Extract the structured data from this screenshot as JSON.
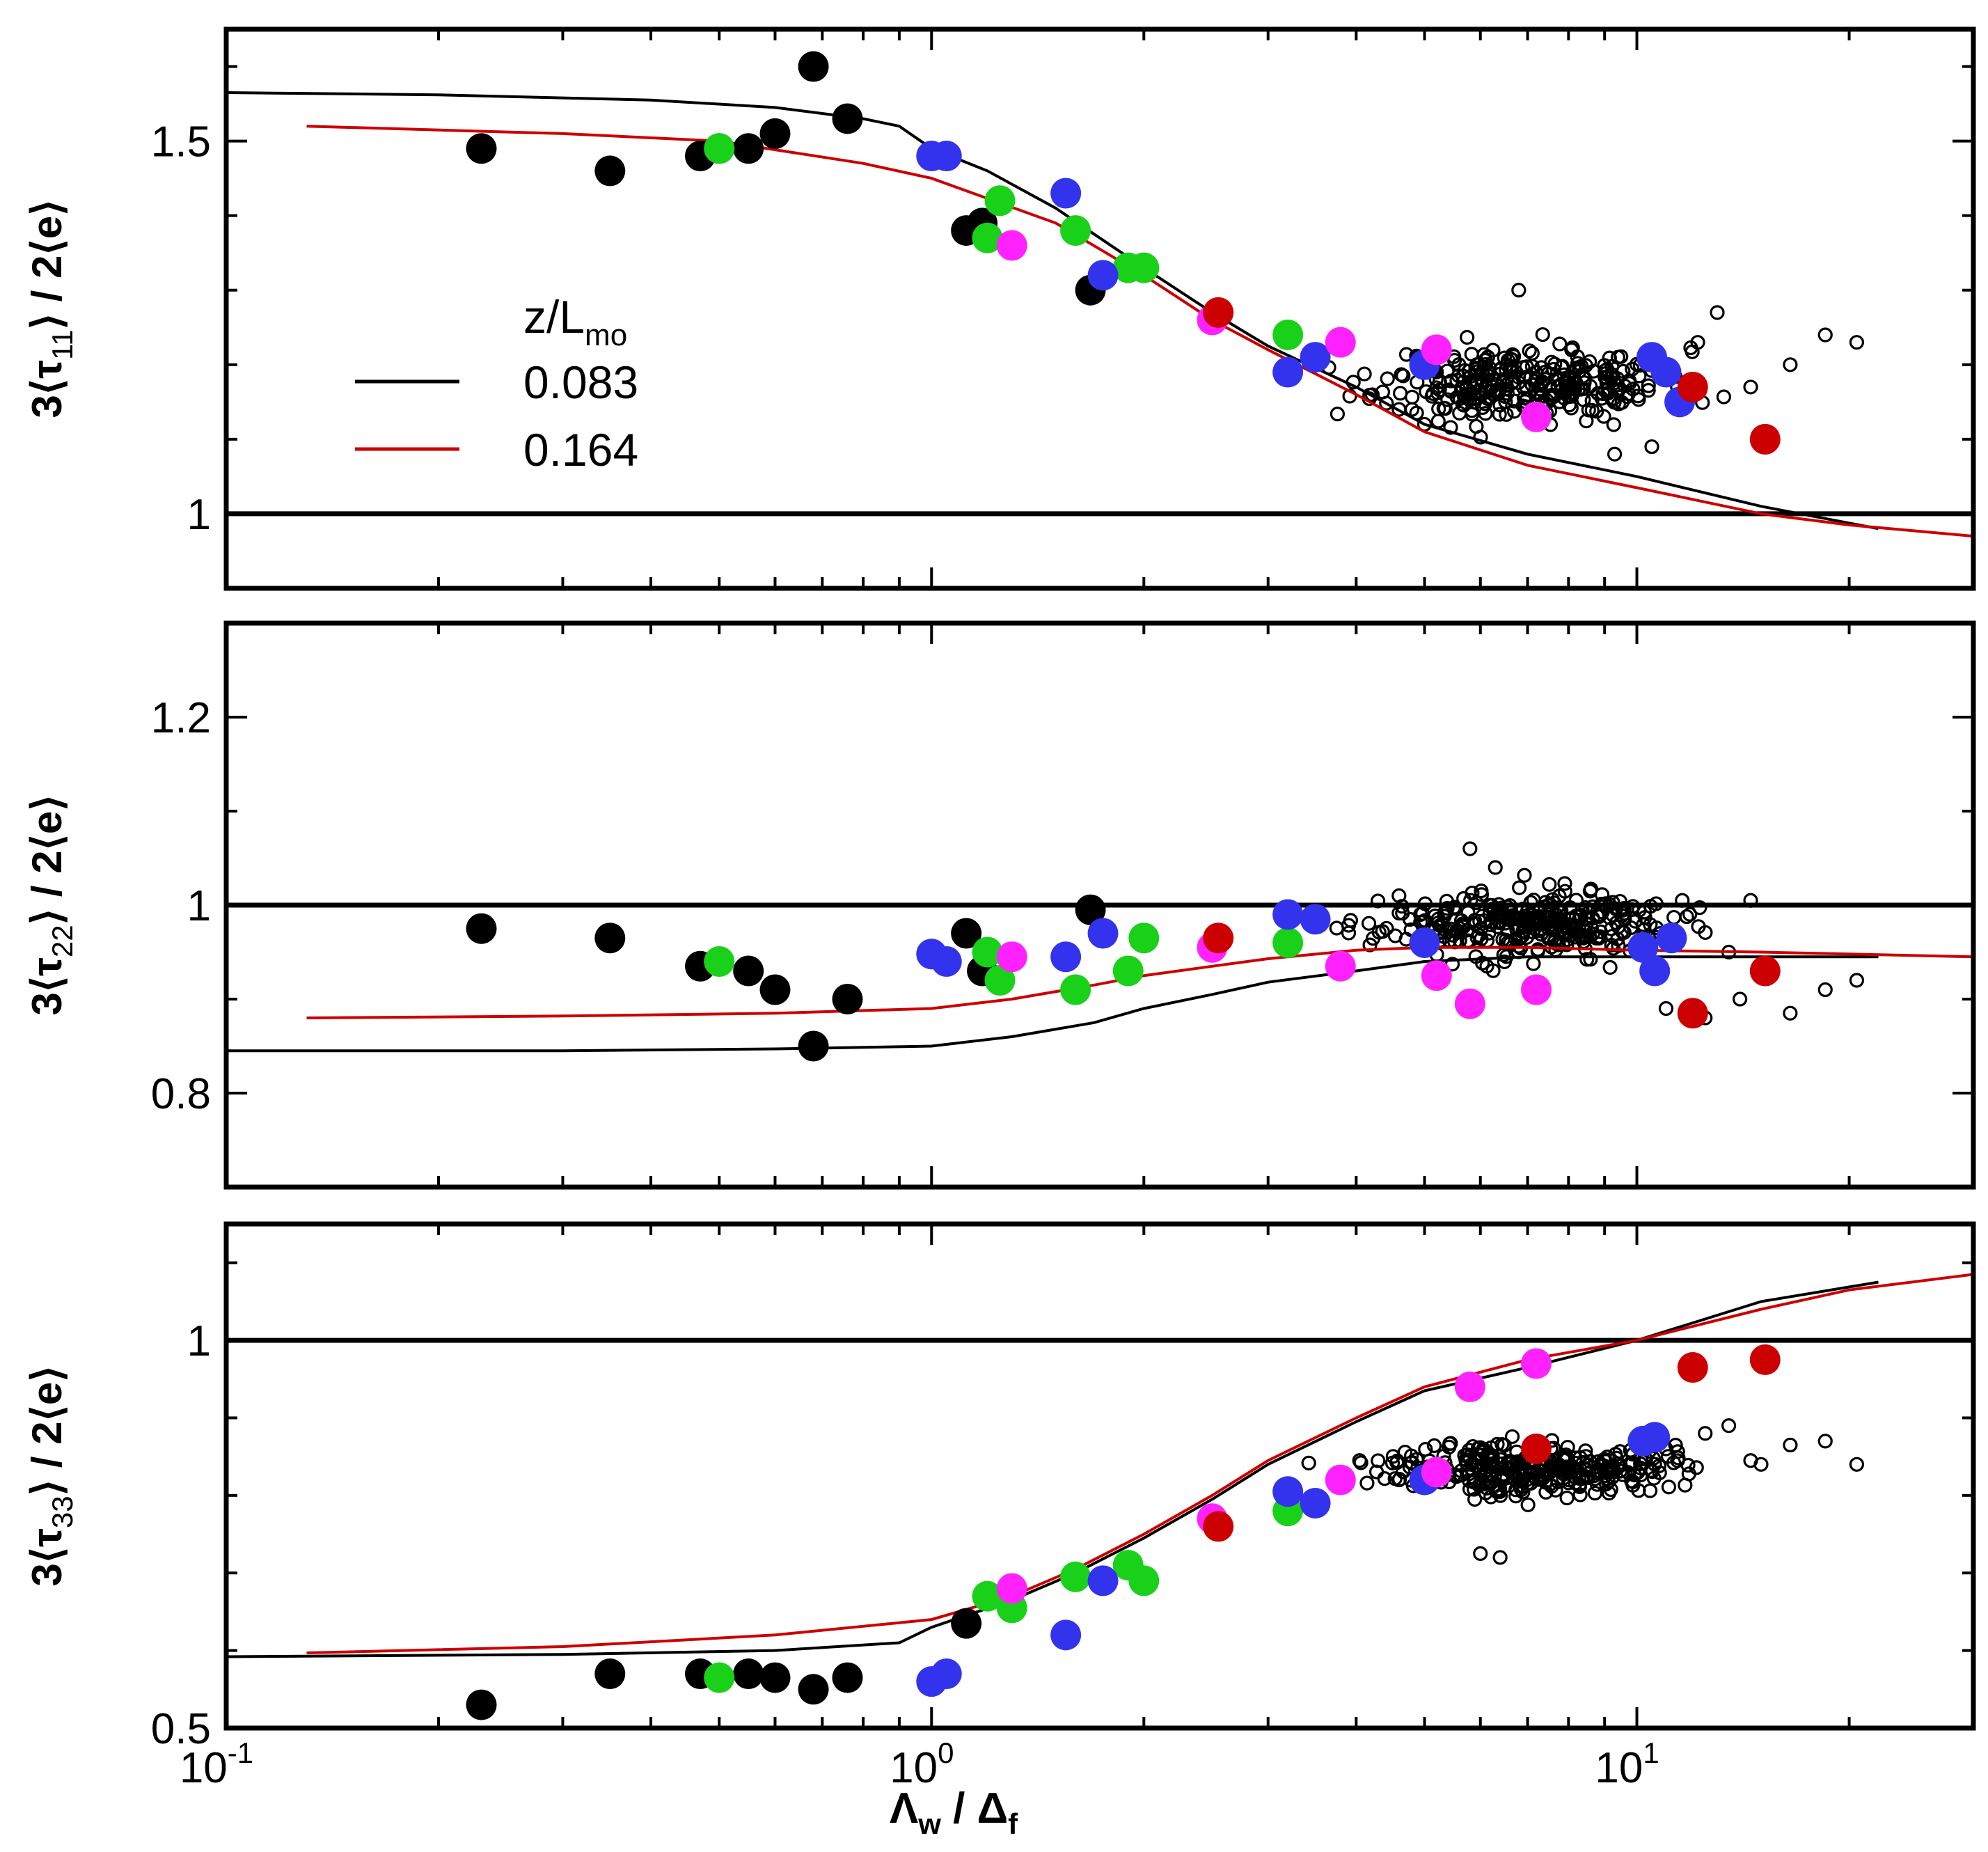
{
  "chart_data": [
    {
      "type": "scatter",
      "panel": "top",
      "ylabel": {
        "prefix": "3⟨τ",
        "sub": "11",
        "suffix": "⟩ / 2⟨e⟩"
      },
      "xscale": "log",
      "xlim": [
        0.1,
        30
      ],
      "ylim": [
        0.9,
        1.65
      ],
      "yticks": [
        {
          "v": 1.0,
          "label": "1"
        },
        {
          "v": 1.5,
          "label": "1.5"
        }
      ],
      "yminor_step": 0.1,
      "reference_line": 1.0,
      "legend": {
        "position": "middle-left",
        "title": {
          "main": "z/L",
          "sub": "mo"
        },
        "entries": [
          {
            "label": "0.083",
            "color": "#000000"
          },
          {
            "label": "0.164",
            "color": "#cc0000"
          }
        ]
      },
      "series": [
        {
          "name": "0.083",
          "kind": "line",
          "color": "#000000",
          "x": [
            0.1,
            0.2,
            0.4,
            0.6,
            0.8,
            0.9,
            1.0,
            1.2,
            1.5,
            2.0,
            2.5,
            3.0,
            4.0,
            5.0,
            7.0,
            10.0,
            15.0,
            22.0
          ],
          "y": [
            1.565,
            1.562,
            1.555,
            1.545,
            1.53,
            1.52,
            1.49,
            1.46,
            1.41,
            1.33,
            1.27,
            1.225,
            1.17,
            1.12,
            1.08,
            1.05,
            1.01,
            0.98
          ]
        },
        {
          "name": "0.164",
          "kind": "line",
          "color": "#cc0000",
          "x": [
            0.13,
            0.3,
            0.5,
            0.8,
            1.0,
            1.5,
            2.0,
            2.5,
            3.0,
            4.0,
            5.0,
            7.0,
            10.0,
            15.0,
            20.0,
            30.0
          ],
          "y": [
            1.52,
            1.51,
            1.5,
            1.47,
            1.45,
            1.39,
            1.32,
            1.26,
            1.22,
            1.16,
            1.11,
            1.065,
            1.035,
            1.0,
            0.985,
            0.97
          ]
        },
        {
          "name": "black",
          "kind": "marker",
          "color": "#000000",
          "x": [
            0.23,
            0.35,
            0.47,
            0.5,
            0.55,
            0.6,
            0.68,
            0.76,
            1.12,
            1.18,
            1.68
          ],
          "y": [
            1.49,
            1.46,
            1.48,
            1.49,
            1.49,
            1.51,
            1.6,
            1.53,
            1.38,
            1.39,
            1.3
          ]
        },
        {
          "name": "green",
          "kind": "marker",
          "color": "#19d119",
          "x": [
            0.5,
            1.2,
            1.25,
            1.6,
            1.9,
            2.0,
            3.2
          ],
          "y": [
            1.49,
            1.37,
            1.42,
            1.38,
            1.33,
            1.33,
            1.24
          ]
        },
        {
          "name": "blue",
          "kind": "marker",
          "color": "#3333ee",
          "x": [
            1.0,
            1.05,
            1.55,
            1.75,
            3.2,
            3.5,
            5.0,
            10.5,
            11.0,
            11.5
          ],
          "y": [
            1.48,
            1.48,
            1.43,
            1.32,
            1.19,
            1.21,
            1.2,
            1.21,
            1.19,
            1.15
          ]
        },
        {
          "name": "magenta",
          "kind": "marker",
          "color": "#ff22ff",
          "x": [
            1.3,
            2.5,
            3.8,
            5.2,
            7.2
          ],
          "y": [
            1.36,
            1.26,
            1.23,
            1.22,
            1.13
          ]
        },
        {
          "name": "red",
          "kind": "marker",
          "color": "#cc0000",
          "x": [
            2.55,
            12.0,
            15.2
          ],
          "y": [
            1.27,
            1.17,
            1.1
          ]
        },
        {
          "name": "open-circles",
          "kind": "cloud",
          "color": "#000000",
          "cx": 7.0,
          "cy": 1.175,
          "spreadx": 0.2,
          "spready": 0.04,
          "count": 320,
          "seed": 11,
          "extra_x": [
            4.6,
            4.8,
            5.0,
            6.8,
            10.5,
            12.2,
            13.0,
            14.5,
            16.5,
            18.5,
            20.5,
            9.3
          ],
          "extra_y": [
            1.14,
            1.14,
            1.12,
            1.3,
            1.09,
            1.23,
            1.27,
            1.17,
            1.2,
            1.24,
            1.23,
            1.08
          ]
        }
      ]
    },
    {
      "type": "scatter",
      "panel": "middle",
      "ylabel": {
        "prefix": "3⟨τ",
        "sub": "22",
        "suffix": "⟩ / 2⟨e⟩"
      },
      "xscale": "log",
      "xlim": [
        0.1,
        30
      ],
      "ylim": [
        0.7,
        1.3
      ],
      "yticks": [
        {
          "v": 0.8,
          "label": "0.8"
        },
        {
          "v": 1.0,
          "label": "1"
        },
        {
          "v": 1.2,
          "label": "1.2"
        }
      ],
      "yminor_step": 0.1,
      "reference_line": 1.0,
      "series": [
        {
          "name": "0.083",
          "kind": "line",
          "color": "#000000",
          "x": [
            0.1,
            0.3,
            0.6,
            1.0,
            1.3,
            1.7,
            2.0,
            2.5,
            3.0,
            4.0,
            5.0,
            7.0,
            10.0,
            15.0,
            22.0
          ],
          "y": [
            0.845,
            0.845,
            0.847,
            0.85,
            0.86,
            0.875,
            0.89,
            0.905,
            0.918,
            0.93,
            0.94,
            0.945,
            0.945,
            0.945,
            0.945
          ]
        },
        {
          "name": "0.164",
          "kind": "line",
          "color": "#cc0000",
          "x": [
            0.13,
            0.3,
            0.6,
            1.0,
            1.3,
            1.7,
            2.0,
            2.5,
            3.0,
            4.0,
            5.0,
            7.0,
            10.0,
            15.0,
            20.0,
            30.0
          ],
          "y": [
            0.88,
            0.882,
            0.885,
            0.89,
            0.9,
            0.915,
            0.925,
            0.935,
            0.943,
            0.952,
            0.955,
            0.955,
            0.952,
            0.95,
            0.948,
            0.945
          ]
        },
        {
          "name": "black",
          "kind": "marker",
          "color": "#000000",
          "x": [
            0.23,
            0.35,
            0.47,
            0.55,
            0.6,
            0.68,
            0.76,
            1.12,
            1.18,
            1.68
          ],
          "y": [
            0.975,
            0.965,
            0.935,
            0.93,
            0.91,
            0.85,
            0.9,
            0.97,
            0.93,
            0.995
          ]
        },
        {
          "name": "green",
          "kind": "marker",
          "color": "#19d119",
          "x": [
            0.5,
            1.2,
            1.25,
            1.6,
            1.9,
            2.0,
            3.2
          ],
          "y": [
            0.94,
            0.95,
            0.92,
            0.91,
            0.93,
            0.965,
            0.96
          ]
        },
        {
          "name": "blue",
          "kind": "marker",
          "color": "#3333ee",
          "x": [
            1.0,
            1.05,
            1.55,
            1.75,
            3.2,
            3.5,
            5.0,
            10.2,
            10.6,
            11.2
          ],
          "y": [
            0.948,
            0.94,
            0.945,
            0.97,
            0.99,
            0.985,
            0.96,
            0.955,
            0.93,
            0.965
          ]
        },
        {
          "name": "magenta",
          "kind": "marker",
          "color": "#ff22ff",
          "x": [
            1.3,
            2.5,
            3.8,
            5.2,
            5.8,
            7.2
          ],
          "y": [
            0.945,
            0.955,
            0.935,
            0.925,
            0.895,
            0.91
          ]
        },
        {
          "name": "red",
          "kind": "marker",
          "color": "#cc0000",
          "x": [
            2.55,
            12.0,
            15.2
          ],
          "y": [
            0.965,
            0.885,
            0.93
          ]
        },
        {
          "name": "open-circles",
          "kind": "cloud",
          "color": "#000000",
          "cx": 7.0,
          "cy": 0.98,
          "spreadx": 0.2,
          "spready": 0.028,
          "count": 320,
          "seed": 23,
          "extra_x": [
            4.6,
            5.8,
            6.3,
            13.5,
            14.0,
            14.5,
            16.5,
            18.5,
            20.5,
            12.5,
            11.0
          ],
          "extra_y": [
            1.01,
            1.06,
            1.04,
            0.95,
            0.9,
            1.005,
            0.885,
            0.91,
            0.92,
            0.88,
            0.89
          ]
        }
      ]
    },
    {
      "type": "scatter",
      "panel": "bottom",
      "ylabel": {
        "prefix": "3⟨τ",
        "sub": "33",
        "suffix": "⟩ / 2⟨e⟩"
      },
      "xlabel": {
        "main1": "Λ",
        "sub1": "w",
        "sep": " / Δ",
        "sub2": "f"
      },
      "xscale": "log",
      "xlim": [
        0.1,
        30
      ],
      "xticks": [
        {
          "v": 0.1,
          "base": "10",
          "exp": "-1"
        },
        {
          "v": 1,
          "base": "10",
          "exp": "0"
        },
        {
          "v": 10,
          "base": "10",
          "exp": "1"
        }
      ],
      "ylim": [
        0.5,
        1.15
      ],
      "yticks": [
        {
          "v": 0.5,
          "label": "0.5"
        },
        {
          "v": 1.0,
          "label": "1"
        }
      ],
      "yminor_step": 0.1,
      "reference_line": 1.0,
      "series": [
        {
          "name": "0.083",
          "kind": "line",
          "color": "#000000",
          "x": [
            0.1,
            0.3,
            0.6,
            0.9,
            1.0,
            1.3,
            1.6,
            2.0,
            2.5,
            3.0,
            4.0,
            5.0,
            7.0,
            10.0,
            15.0,
            22.0
          ],
          "y": [
            0.592,
            0.595,
            0.6,
            0.61,
            0.63,
            0.665,
            0.7,
            0.745,
            0.795,
            0.84,
            0.895,
            0.935,
            0.965,
            1.0,
            1.05,
            1.075
          ]
        },
        {
          "name": "0.164",
          "kind": "line",
          "color": "#cc0000",
          "x": [
            0.13,
            0.3,
            0.6,
            1.0,
            1.3,
            1.6,
            2.0,
            2.5,
            3.0,
            4.0,
            5.0,
            7.0,
            10.0,
            15.0,
            20.0,
            30.0
          ],
          "y": [
            0.597,
            0.605,
            0.62,
            0.64,
            0.67,
            0.705,
            0.75,
            0.8,
            0.845,
            0.9,
            0.94,
            0.975,
            1.0,
            1.04,
            1.065,
            1.085
          ]
        },
        {
          "name": "black",
          "kind": "marker",
          "color": "#000000",
          "x": [
            0.23,
            0.35,
            0.47,
            0.55,
            0.6,
            0.68,
            0.76,
            1.12
          ],
          "y": [
            0.53,
            0.57,
            0.57,
            0.57,
            0.565,
            0.55,
            0.565,
            0.635
          ]
        },
        {
          "name": "green",
          "kind": "marker",
          "color": "#19d119",
          "x": [
            0.5,
            1.2,
            1.3,
            1.6,
            1.9,
            2.0,
            3.2
          ],
          "y": [
            0.565,
            0.67,
            0.655,
            0.695,
            0.71,
            0.69,
            0.78
          ]
        },
        {
          "name": "blue",
          "kind": "marker",
          "color": "#3333ee",
          "x": [
            1.0,
            1.05,
            1.55,
            1.75,
            3.2,
            3.5,
            5.0,
            10.2,
            10.6
          ],
          "y": [
            0.56,
            0.57,
            0.62,
            0.69,
            0.805,
            0.79,
            0.82,
            0.87,
            0.875
          ]
        },
        {
          "name": "magenta",
          "kind": "marker",
          "color": "#ff22ff",
          "x": [
            1.3,
            2.5,
            3.8,
            5.2,
            5.8,
            7.2
          ],
          "y": [
            0.68,
            0.77,
            0.82,
            0.83,
            0.94,
            0.97
          ]
        },
        {
          "name": "red",
          "kind": "marker",
          "color": "#cc0000",
          "x": [
            2.55,
            7.2,
            12.0,
            15.2
          ],
          "y": [
            0.76,
            0.86,
            0.965,
            0.975
          ]
        },
        {
          "name": "open-circles",
          "kind": "cloud",
          "color": "#000000",
          "cx": 7.0,
          "cy": 0.835,
          "spreadx": 0.2,
          "spready": 0.028,
          "count": 320,
          "seed": 37,
          "extra_x": [
            4.6,
            6.0,
            6.4,
            13.5,
            14.5,
            15.0,
            16.5,
            18.5,
            20.5,
            12.5,
            11.0
          ],
          "extra_y": [
            0.82,
            0.725,
            0.72,
            0.89,
            0.845,
            0.84,
            0.865,
            0.87,
            0.84,
            0.88,
            0.86
          ]
        }
      ]
    }
  ]
}
